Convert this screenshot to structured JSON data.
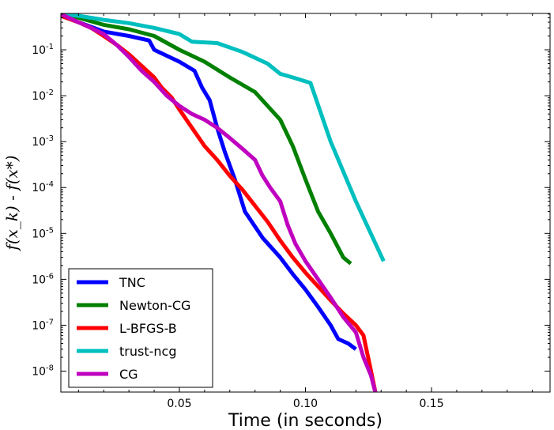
{
  "chart_data": {
    "type": "line",
    "title": "",
    "xlabel": "Time (in seconds)",
    "ylabel": "f(x_k) - f(x*)",
    "xlim": [
      0.003,
      0.197
    ],
    "ylim": [
      3.5e-09,
      0.62
    ],
    "yscale": "log",
    "x_ticks": [
      0.05,
      0.1,
      0.15
    ],
    "x_tick_labels": [
      "0.05",
      "0.10",
      "0.15"
    ],
    "y_ticks": [
      1e-08,
      1e-07,
      1e-06,
      1e-05,
      0.0001,
      0.001,
      0.01,
      0.1
    ],
    "y_tick_labels": [
      "10-8",
      "10-7",
      "10-6",
      "10-5",
      "10-4",
      "10-3",
      "10-2",
      "10-1"
    ],
    "grid": false,
    "legend_position": "lower-left",
    "series": [
      {
        "name": "TNC",
        "color": "#0000ff",
        "x": [
          0.003,
          0.01,
          0.02,
          0.03,
          0.038,
          0.04,
          0.05,
          0.056,
          0.059,
          0.062,
          0.065,
          0.068,
          0.072,
          0.076,
          0.083,
          0.09,
          0.095,
          0.1,
          0.105,
          0.11,
          0.113,
          0.117,
          0.12
        ],
        "y": [
          0.55,
          0.4,
          0.25,
          0.2,
          0.16,
          0.1,
          0.055,
          0.035,
          0.015,
          0.008,
          0.002,
          0.0006,
          0.00015,
          3e-05,
          8e-06,
          3e-06,
          1.3e-06,
          6e-07,
          2.5e-07,
          1e-07,
          5e-08,
          4e-08,
          3e-08
        ]
      },
      {
        "name": "Newton-CG",
        "color": "#008000",
        "x": [
          0.003,
          0.01,
          0.02,
          0.03,
          0.04,
          0.05,
          0.06,
          0.07,
          0.08,
          0.085,
          0.09,
          0.095,
          0.1,
          0.105,
          0.11,
          0.115,
          0.118
        ],
        "y": [
          0.6,
          0.5,
          0.35,
          0.28,
          0.2,
          0.1,
          0.055,
          0.025,
          0.012,
          0.006,
          0.003,
          0.0008,
          0.00015,
          3e-05,
          1e-05,
          3e-06,
          2.2e-06
        ]
      },
      {
        "name": "L-BFGS-B",
        "color": "#ff0000",
        "x": [
          0.003,
          0.01,
          0.015,
          0.02,
          0.025,
          0.03,
          0.035,
          0.04,
          0.043,
          0.047,
          0.05,
          0.055,
          0.06,
          0.065,
          0.07,
          0.075,
          0.08,
          0.085,
          0.09,
          0.095,
          0.1,
          0.105,
          0.11,
          0.115,
          0.12,
          0.123,
          0.126,
          0.128
        ],
        "y": [
          0.55,
          0.4,
          0.3,
          0.2,
          0.13,
          0.08,
          0.045,
          0.025,
          0.015,
          0.009,
          0.005,
          0.002,
          0.0008,
          0.0004,
          0.00018,
          9e-05,
          4e-05,
          1.8e-05,
          7e-06,
          3e-06,
          1.4e-06,
          7e-07,
          3.5e-07,
          1.8e-07,
          1e-07,
          6e-08,
          1e-08,
          3e-09
        ]
      },
      {
        "name": "trust-ncg",
        "color": "#00bfbf",
        "x": [
          0.003,
          0.01,
          0.02,
          0.03,
          0.04,
          0.05,
          0.055,
          0.065,
          0.075,
          0.085,
          0.09,
          0.095,
          0.102,
          0.11,
          0.12,
          0.131
        ],
        "y": [
          0.6,
          0.55,
          0.45,
          0.38,
          0.3,
          0.22,
          0.15,
          0.14,
          0.09,
          0.05,
          0.03,
          0.025,
          0.019,
          0.001,
          5e-05,
          2.5e-06
        ]
      },
      {
        "name": "CG",
        "color": "#bf00bf",
        "x": [
          0.003,
          0.01,
          0.015,
          0.02,
          0.025,
          0.03,
          0.035,
          0.04,
          0.045,
          0.05,
          0.055,
          0.06,
          0.065,
          0.07,
          0.075,
          0.08,
          0.083,
          0.086,
          0.09,
          0.093,
          0.096,
          0.1,
          0.105,
          0.11,
          0.115,
          0.12,
          0.123,
          0.126,
          0.128
        ],
        "y": [
          0.6,
          0.4,
          0.3,
          0.22,
          0.13,
          0.07,
          0.035,
          0.02,
          0.01,
          0.006,
          0.004,
          0.003,
          0.002,
          0.0012,
          0.0007,
          0.0004,
          0.00018,
          0.0001,
          5e-05,
          1.5e-05,
          6e-06,
          2.5e-06,
          1e-06,
          4e-07,
          1.5e-07,
          7e-08,
          2e-08,
          8e-09,
          3e-09
        ]
      }
    ]
  }
}
